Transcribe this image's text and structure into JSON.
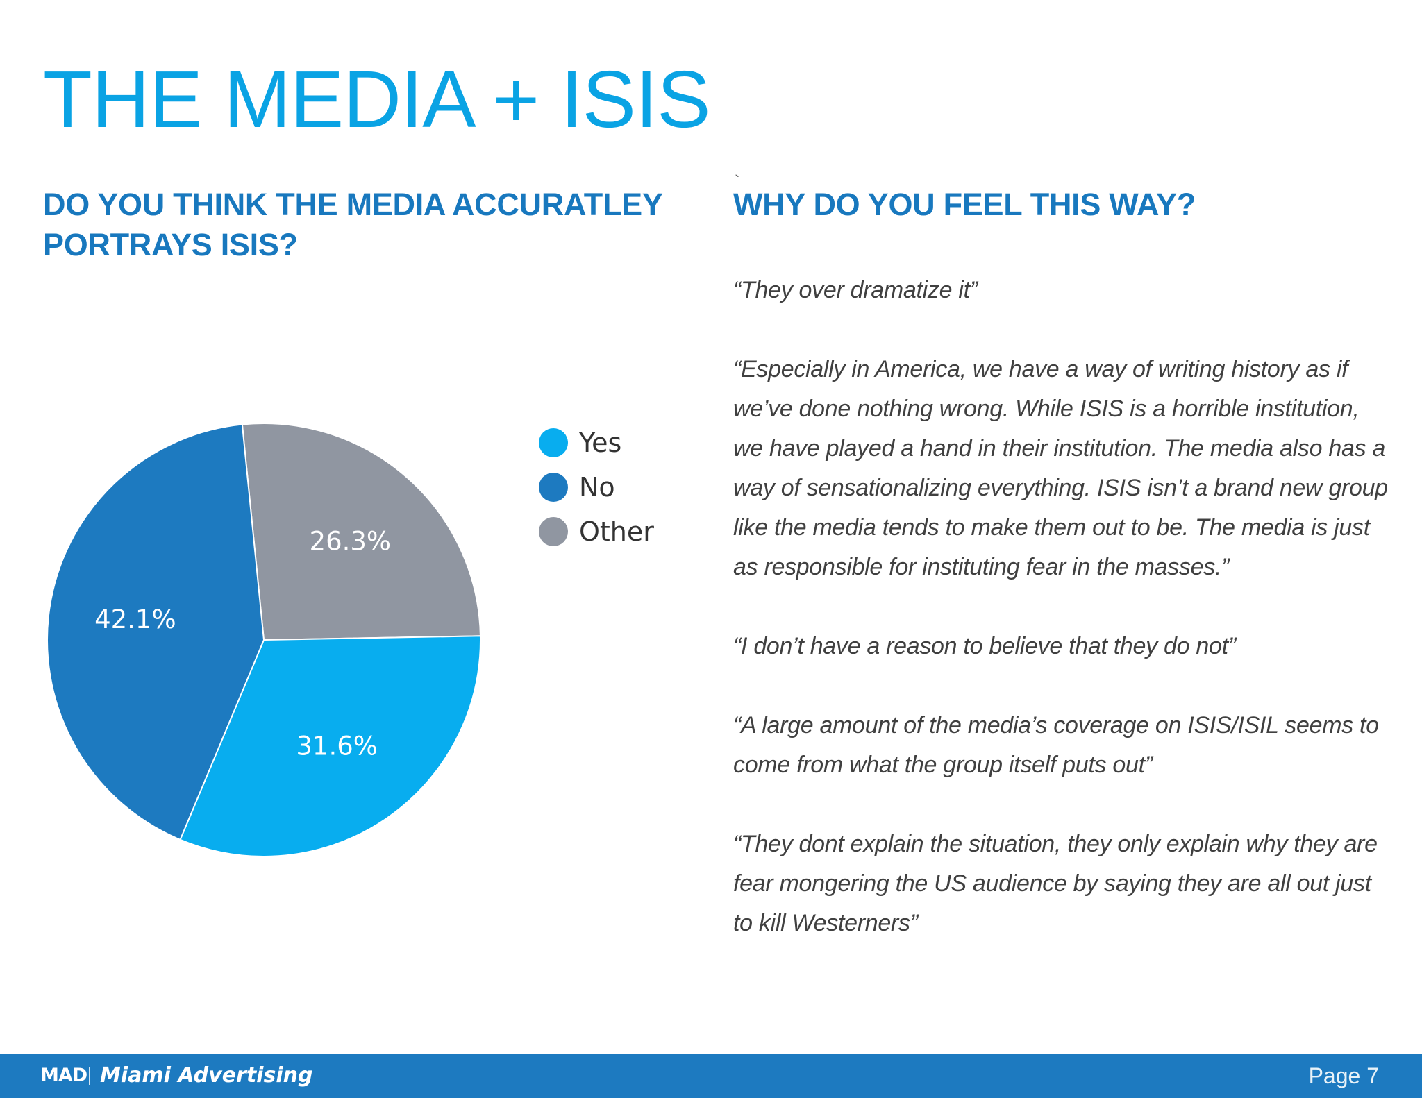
{
  "page": {
    "title": "THE MEDIA + ISIS",
    "question": "DO YOU THINK THE MEDIA ACCURATLEY PORTRAYS ISIS?",
    "why_heading": "WHY DO YOU FEEL THIS WAY?",
    "stray_mark": "`"
  },
  "quotes": [
    "“They over dramatize it”",
    "“Especially in America, we have a way of writing history as if we’ve done nothing wrong. While ISIS is a horrible institution, we have played a hand in their institution. The media also has a way of sensationalizing everything. ISIS isn’t a brand new group like the media tends to make them out to be. The media is just as responsible for instituting fear in the masses.”",
    "“I don’t have a reason to believe that they do not”",
    "“A large amount of the media’s coverage on ISIS/ISIL seems to come from what the group itself puts out”",
    "“They dont explain the situation, they only explain why they are fear mongering the US audience by saying they are all out just to kill Westerners”"
  ],
  "chart_data": {
    "type": "pie",
    "title": "",
    "legend_position": "right",
    "series": [
      {
        "name": "Yes",
        "value": 31.6,
        "label": "31.6%",
        "color": "#08adef"
      },
      {
        "name": "No",
        "value": 42.1,
        "label": "42.1%",
        "color": "#1d7ac0"
      },
      {
        "name": "Other",
        "value": 26.3,
        "label": "26.3%",
        "color": "#9096a1"
      }
    ]
  },
  "footer": {
    "logo_text": "MAD",
    "brand_name": "Miami Advertising",
    "page_number": "Page 7",
    "background_color": "#1d7ac0"
  }
}
